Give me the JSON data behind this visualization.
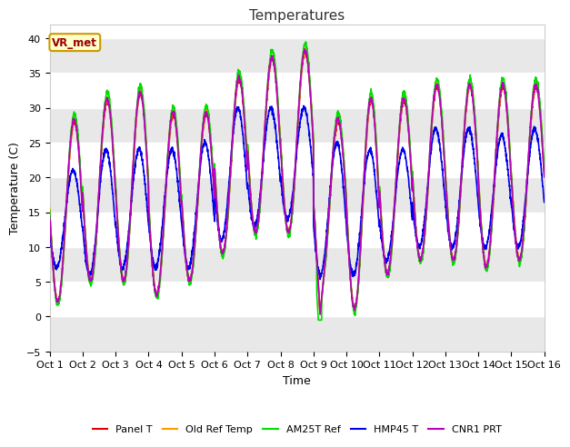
{
  "title": "Temperatures",
  "xlabel": "Time",
  "ylabel": "Temperature (C)",
  "ylim": [
    -5,
    42
  ],
  "yticks": [
    -5,
    0,
    5,
    10,
    15,
    20,
    25,
    30,
    35,
    40
  ],
  "xlim": [
    0,
    15
  ],
  "xtick_labels": [
    "Oct 1",
    "Oct 2",
    "Oct 3",
    "Oct 4",
    "Oct 5",
    "Oct 6",
    "Oct 7",
    "Oct 8",
    "Oct 9",
    "Oct 10",
    "Oct 11",
    "Oct 12",
    "Oct 13",
    "Oct 14",
    "Oct 15",
    "Oct 16"
  ],
  "annotation": "VR_met",
  "series_names": [
    "Panel T",
    "Old Ref Temp",
    "AM25T Ref",
    "HMP45 T",
    "CNR1 PRT"
  ],
  "series_colors": [
    "#dd0000",
    "#ff9900",
    "#00dd00",
    "#0000ee",
    "#bb00bb"
  ],
  "series_linewidths": [
    1.2,
    1.2,
    1.2,
    1.2,
    1.2
  ],
  "bg_color": "#ffffff",
  "plot_bg_color": "#ffffff",
  "band_color": "#e8e8e8",
  "day_min_temps": [
    2,
    5,
    5,
    3,
    5,
    9,
    12,
    12,
    5,
    1,
    6,
    8,
    8,
    7,
    8
  ],
  "day_max_temps": [
    28,
    31,
    32,
    29,
    29,
    34,
    37,
    38,
    28,
    31,
    31,
    33,
    33,
    33,
    33
  ],
  "hmp_min_temps": [
    7,
    6,
    7,
    7,
    7,
    11,
    13,
    14,
    6,
    6,
    8,
    10,
    10,
    10,
    10
  ],
  "hmp_max_temps": [
    21,
    24,
    24,
    24,
    25,
    30,
    30,
    30,
    25,
    24,
    24,
    27,
    27,
    26,
    27
  ]
}
